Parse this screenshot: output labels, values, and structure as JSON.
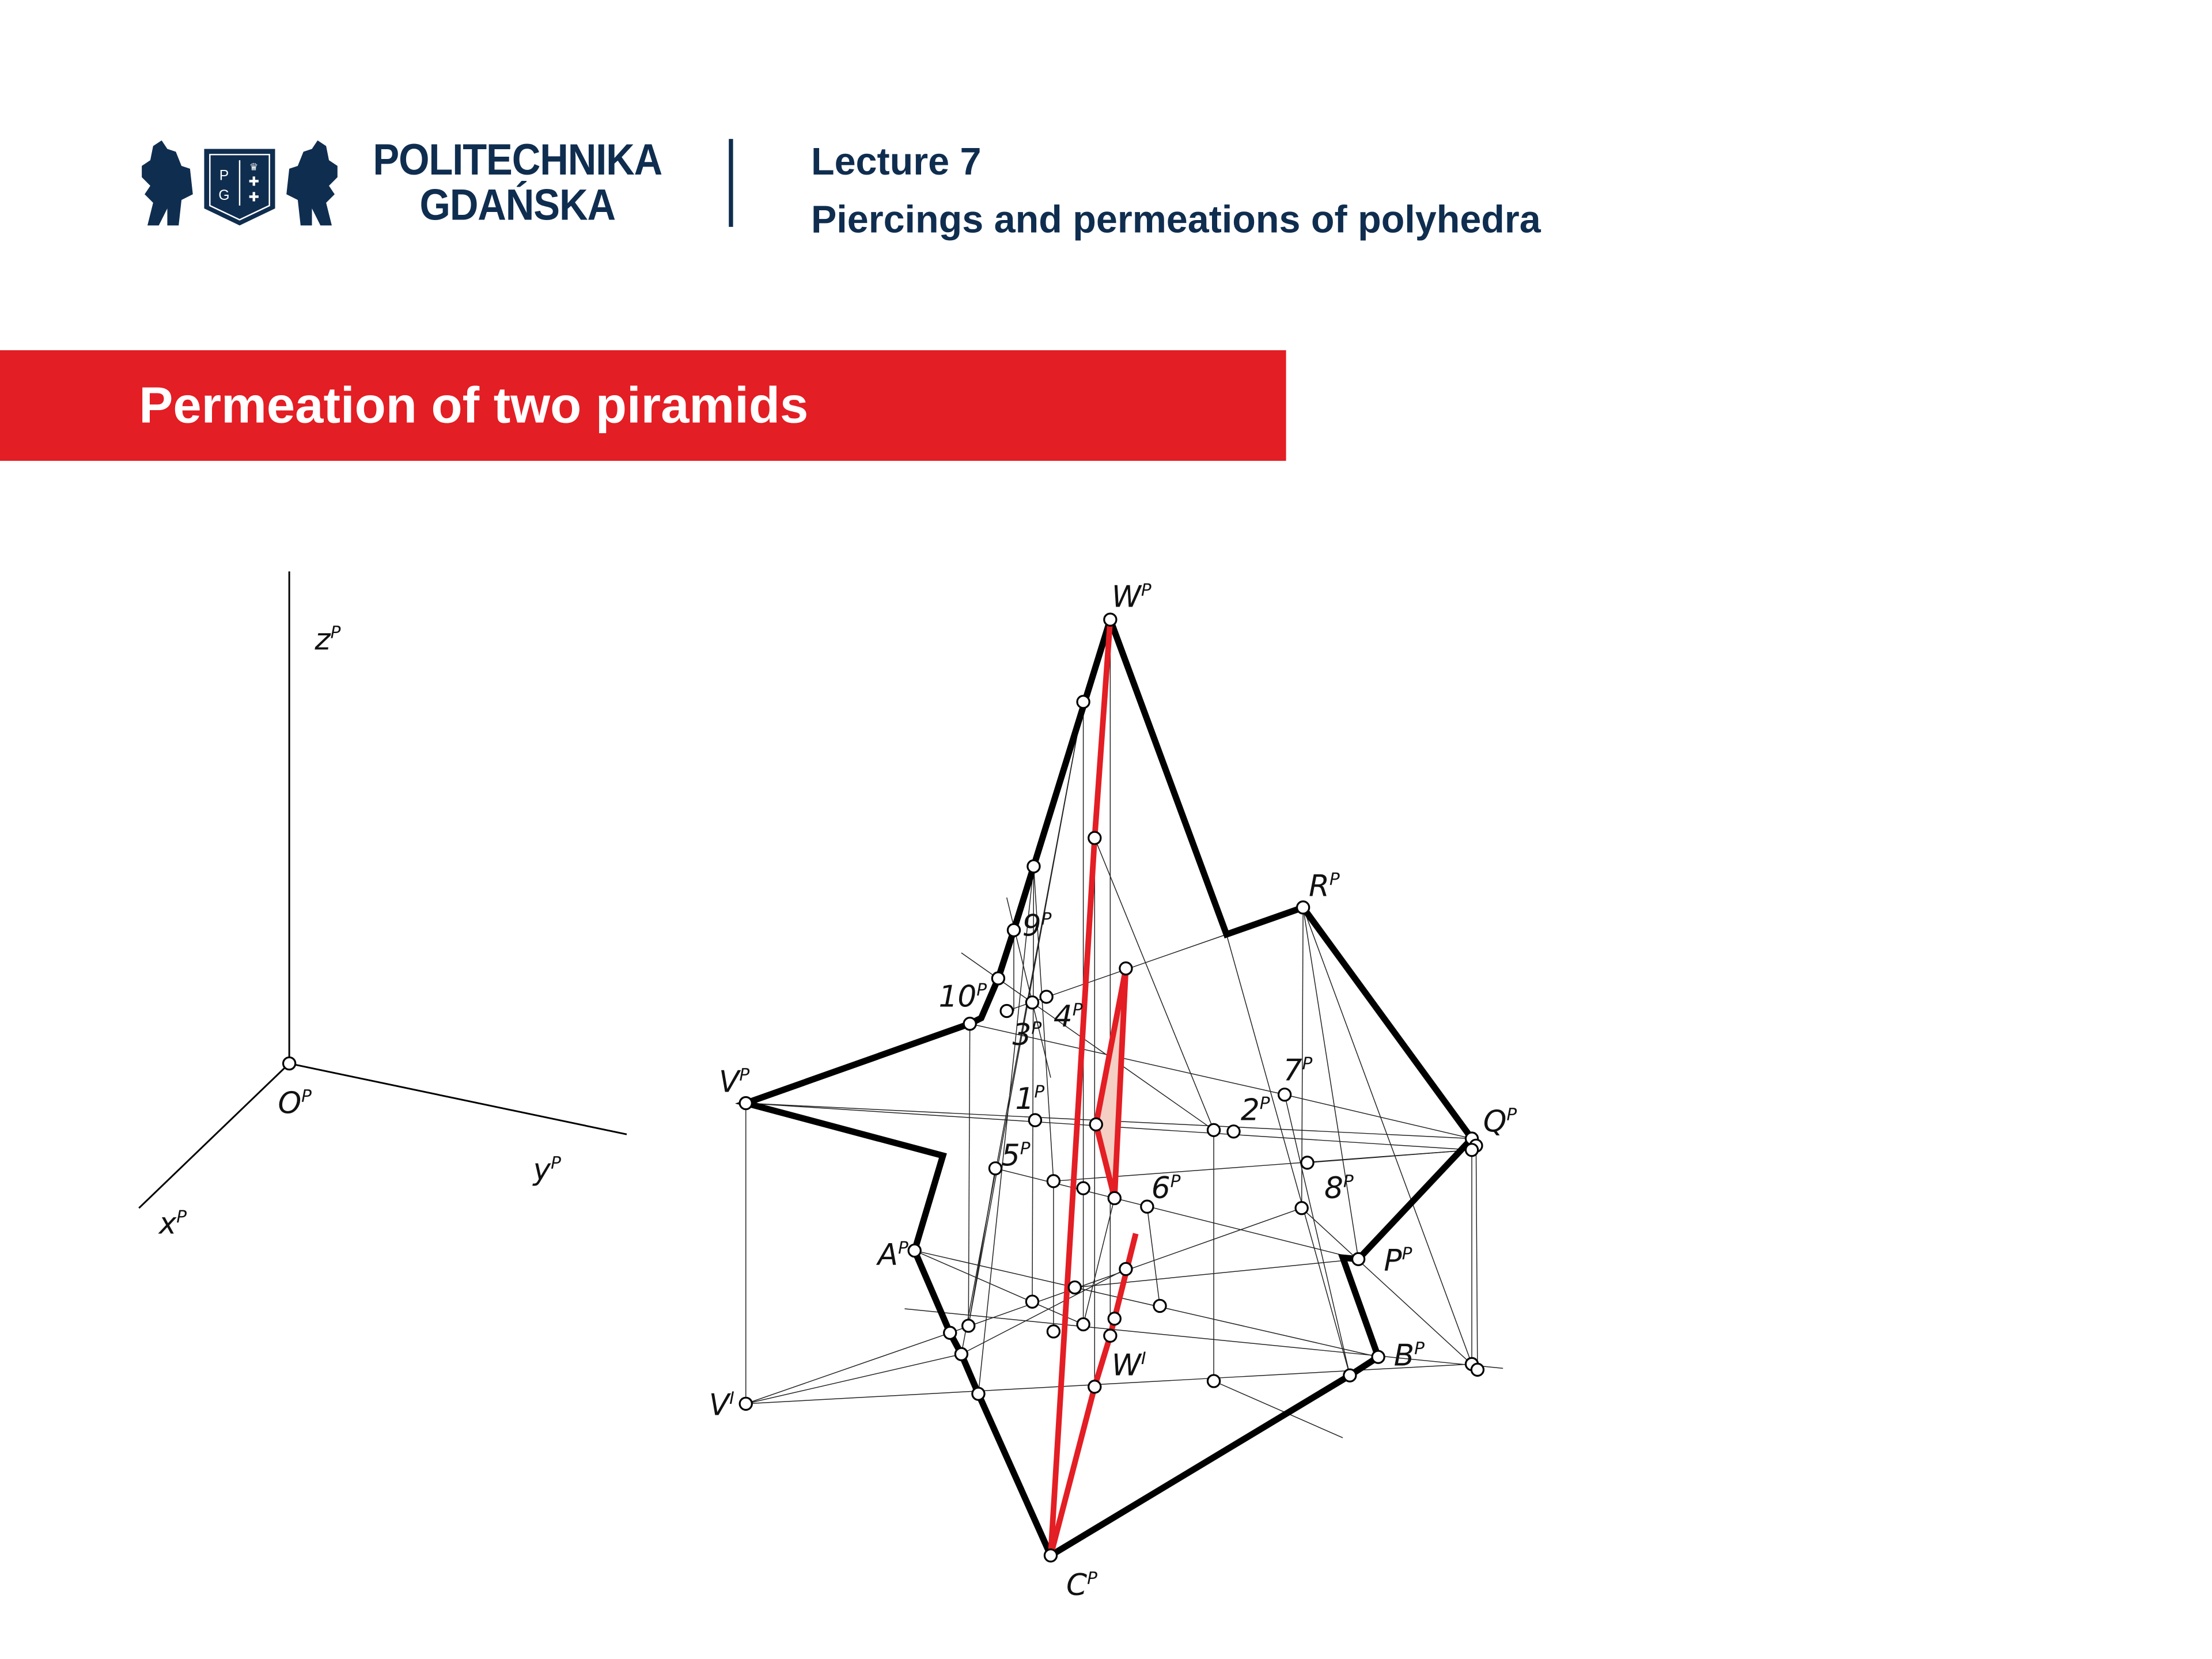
{
  "header": {
    "brand_line1": "POLITECHNIKA",
    "brand_line2": "GDAŃSKA",
    "logo_letters": "PG",
    "lecture_number": "Lecture 7",
    "lecture_title": "Piercings and permeations of polyhedra"
  },
  "slide": {
    "title": "Permeation of two piramids"
  },
  "colors": {
    "brand_navy": "#0f2d4f",
    "accent_red": "#e31e24",
    "permeation_line": "#e31e24",
    "outline": "#000000"
  },
  "diagram": {
    "axis_labels": [
      {
        "base": "z",
        "sup": "P"
      },
      {
        "base": "O",
        "sup": "P"
      },
      {
        "base": "y",
        "sup": "P"
      },
      {
        "base": "x",
        "sup": "P"
      }
    ],
    "point_labels": [
      {
        "base": "W",
        "sup": "P"
      },
      {
        "base": "R",
        "sup": "P"
      },
      {
        "base": "9",
        "sup": "P"
      },
      {
        "base": "10",
        "sup": "P"
      },
      {
        "base": "3",
        "sup": "P"
      },
      {
        "base": "4",
        "sup": "P"
      },
      {
        "base": "V",
        "sup": "P"
      },
      {
        "base": "7",
        "sup": "P"
      },
      {
        "base": "1",
        "sup": "P"
      },
      {
        "base": "2",
        "sup": "P"
      },
      {
        "base": "Q",
        "sup": "P"
      },
      {
        "base": "5",
        "sup": "P"
      },
      {
        "base": "6",
        "sup": "P"
      },
      {
        "base": "8",
        "sup": "P"
      },
      {
        "base": "A",
        "sup": "P"
      },
      {
        "base": "P",
        "sup": "P"
      },
      {
        "base": "B",
        "sup": "P"
      },
      {
        "base": "W",
        "sup": "I"
      },
      {
        "base": "V",
        "sup": "I"
      },
      {
        "base": "C",
        "sup": "P"
      }
    ]
  }
}
